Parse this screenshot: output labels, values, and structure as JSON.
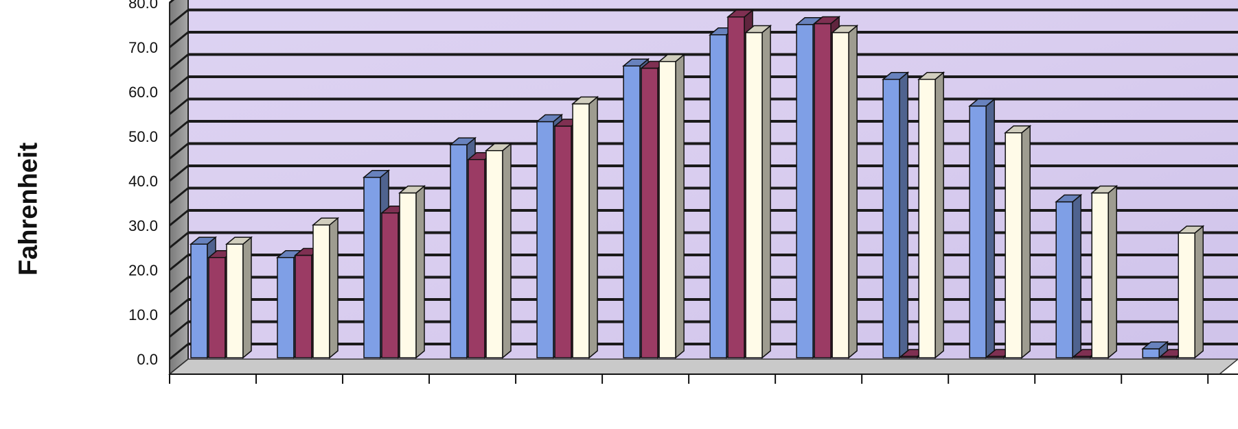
{
  "chart_data": {
    "type": "bar",
    "title": "",
    "xlabel": "",
    "ylabel": "Fahrenheit",
    "ylim": [
      0,
      80
    ],
    "ytick_values": [
      0,
      10,
      20,
      30,
      40,
      50,
      60,
      70,
      80
    ],
    "ytick_labels": [
      "0.0",
      "10.0",
      "20.0",
      "30.0",
      "40.0",
      "50.0",
      "60.0",
      "70.0",
      "80.0"
    ],
    "grid": true,
    "legend": "none",
    "categories": [
      "",
      "",
      "",
      "",
      "",
      "",
      "",
      "",
      "",
      "",
      "",
      ""
    ],
    "series": [
      {
        "color": "#7f9fe6",
        "values": [
          25.5,
          22.5,
          40.5,
          47.8,
          53.0,
          65.5,
          72.5,
          74.8,
          62.5,
          56.5,
          35.0,
          2.0
        ]
      },
      {
        "color": "#9b3b64",
        "values": [
          22.5,
          23.0,
          32.5,
          44.5,
          52.0,
          65.0,
          76.5,
          75.0,
          0,
          0,
          0,
          0
        ]
      },
      {
        "color": "#fffbe8",
        "values": [
          25.5,
          29.8,
          37.0,
          46.5,
          57.0,
          66.5,
          73.0,
          73.0,
          62.5,
          50.5,
          37.0,
          28.0
        ]
      }
    ]
  }
}
